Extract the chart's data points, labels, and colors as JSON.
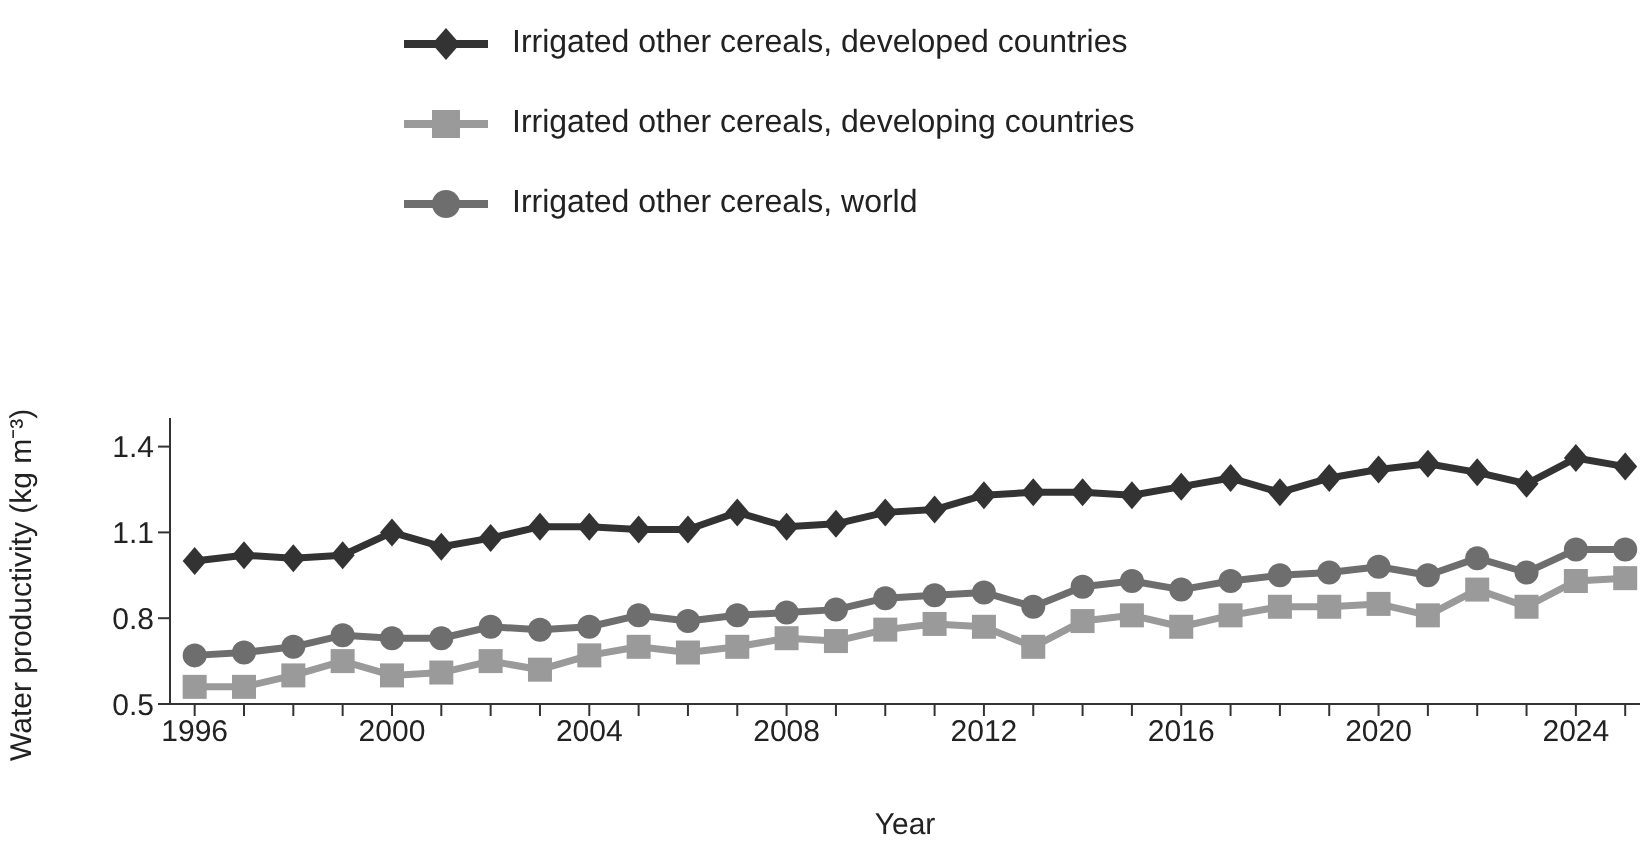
{
  "chart_data": {
    "type": "line",
    "xlabel": "Year",
    "ylabel": "Water productivity (kg m⁻³)",
    "x": [
      1996,
      1997,
      1998,
      1999,
      2000,
      2001,
      2002,
      2003,
      2004,
      2005,
      2006,
      2007,
      2008,
      2009,
      2010,
      2011,
      2012,
      2013,
      2014,
      2015,
      2016,
      2017,
      2018,
      2019,
      2020,
      2021,
      2022,
      2023,
      2024,
      2025
    ],
    "series": [
      {
        "name": "Irrigated other cereals, developed countries",
        "color": "#333333",
        "marker": "diamond",
        "values": [
          1.0,
          1.02,
          1.01,
          1.02,
          1.1,
          1.05,
          1.08,
          1.12,
          1.12,
          1.11,
          1.11,
          1.17,
          1.12,
          1.13,
          1.17,
          1.18,
          1.23,
          1.24,
          1.24,
          1.23,
          1.26,
          1.29,
          1.24,
          1.29,
          1.32,
          1.34,
          1.31,
          1.27,
          1.36,
          1.33
        ]
      },
      {
        "name": "Irrigated other cereals, developing countries",
        "color": "#9a9a9a",
        "marker": "square",
        "values": [
          0.56,
          0.56,
          0.6,
          0.65,
          0.6,
          0.61,
          0.65,
          0.62,
          0.67,
          0.7,
          0.68,
          0.7,
          0.73,
          0.72,
          0.76,
          0.78,
          0.77,
          0.7,
          0.79,
          0.81,
          0.77,
          0.81,
          0.84,
          0.84,
          0.85,
          0.81,
          0.9,
          0.84,
          0.93,
          0.94
        ]
      },
      {
        "name": "Irrigated other cereals, world",
        "color": "#6e6e6e",
        "marker": "circle",
        "values": [
          0.67,
          0.68,
          0.7,
          0.74,
          0.73,
          0.73,
          0.77,
          0.76,
          0.77,
          0.81,
          0.79,
          0.81,
          0.82,
          0.83,
          0.87,
          0.88,
          0.89,
          0.84,
          0.91,
          0.93,
          0.9,
          0.93,
          0.95,
          0.96,
          0.98,
          0.95,
          1.01,
          0.96,
          1.04,
          1.04
        ]
      }
    ],
    "xlim": [
      1995.5,
      2025.3
    ],
    "xticks": [
      1996,
      {
        "value": 1997,
        "label": null
      },
      {
        "value": 1998,
        "label": null
      },
      {
        "value": 1999,
        "label": null
      },
      2000,
      {
        "value": 2001,
        "label": null
      },
      {
        "value": 2002,
        "label": null
      },
      {
        "value": 2003,
        "label": null
      },
      2004,
      {
        "value": 2005,
        "label": null
      },
      {
        "value": 2006,
        "label": null
      },
      {
        "value": 2007,
        "label": null
      },
      2008,
      {
        "value": 2009,
        "label": null
      },
      {
        "value": 2010,
        "label": null
      },
      {
        "value": 2011,
        "label": null
      },
      2012,
      {
        "value": 2013,
        "label": null
      },
      {
        "value": 2014,
        "label": null
      },
      {
        "value": 2015,
        "label": null
      },
      2016,
      {
        "value": 2017,
        "label": null
      },
      {
        "value": 2018,
        "label": null
      },
      {
        "value": 2019,
        "label": null
      },
      2020,
      {
        "value": 2021,
        "label": null
      },
      {
        "value": 2022,
        "label": null
      },
      {
        "value": 2023,
        "label": null
      },
      2024,
      {
        "value": 2025,
        "label": null
      }
    ],
    "ylim": [
      0.5,
      1.5
    ],
    "yticks": [
      0.5,
      0.8,
      1.1,
      1.4
    ],
    "grid": false,
    "legend": "top",
    "line_style": "solid"
  }
}
